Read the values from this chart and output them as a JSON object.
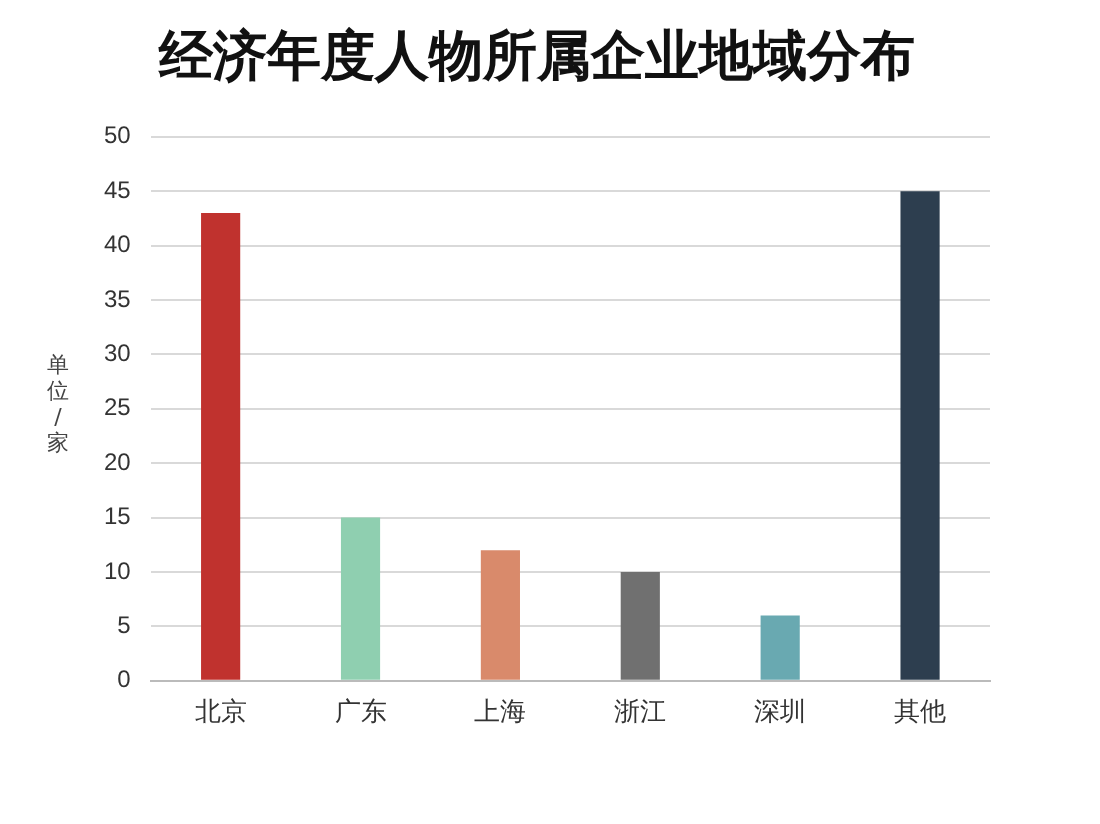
{
  "chart_data": {
    "type": "bar",
    "title": "经济年度人物所属企业地域分布",
    "ylabel": "单位/家",
    "categories": [
      "北京",
      "广东",
      "上海",
      "浙江",
      "深圳",
      "其他"
    ],
    "values": [
      43,
      15,
      12,
      10,
      6,
      45
    ],
    "colors": [
      "#c0322e",
      "#8fcfb0",
      "#d98a6b",
      "#707070",
      "#69a9b1",
      "#2d3e4f"
    ],
    "ylim": [
      0,
      50
    ],
    "yticks": [
      0,
      5,
      10,
      15,
      20,
      25,
      30,
      35,
      40,
      45,
      50
    ],
    "grid": "y",
    "legend": false
  }
}
